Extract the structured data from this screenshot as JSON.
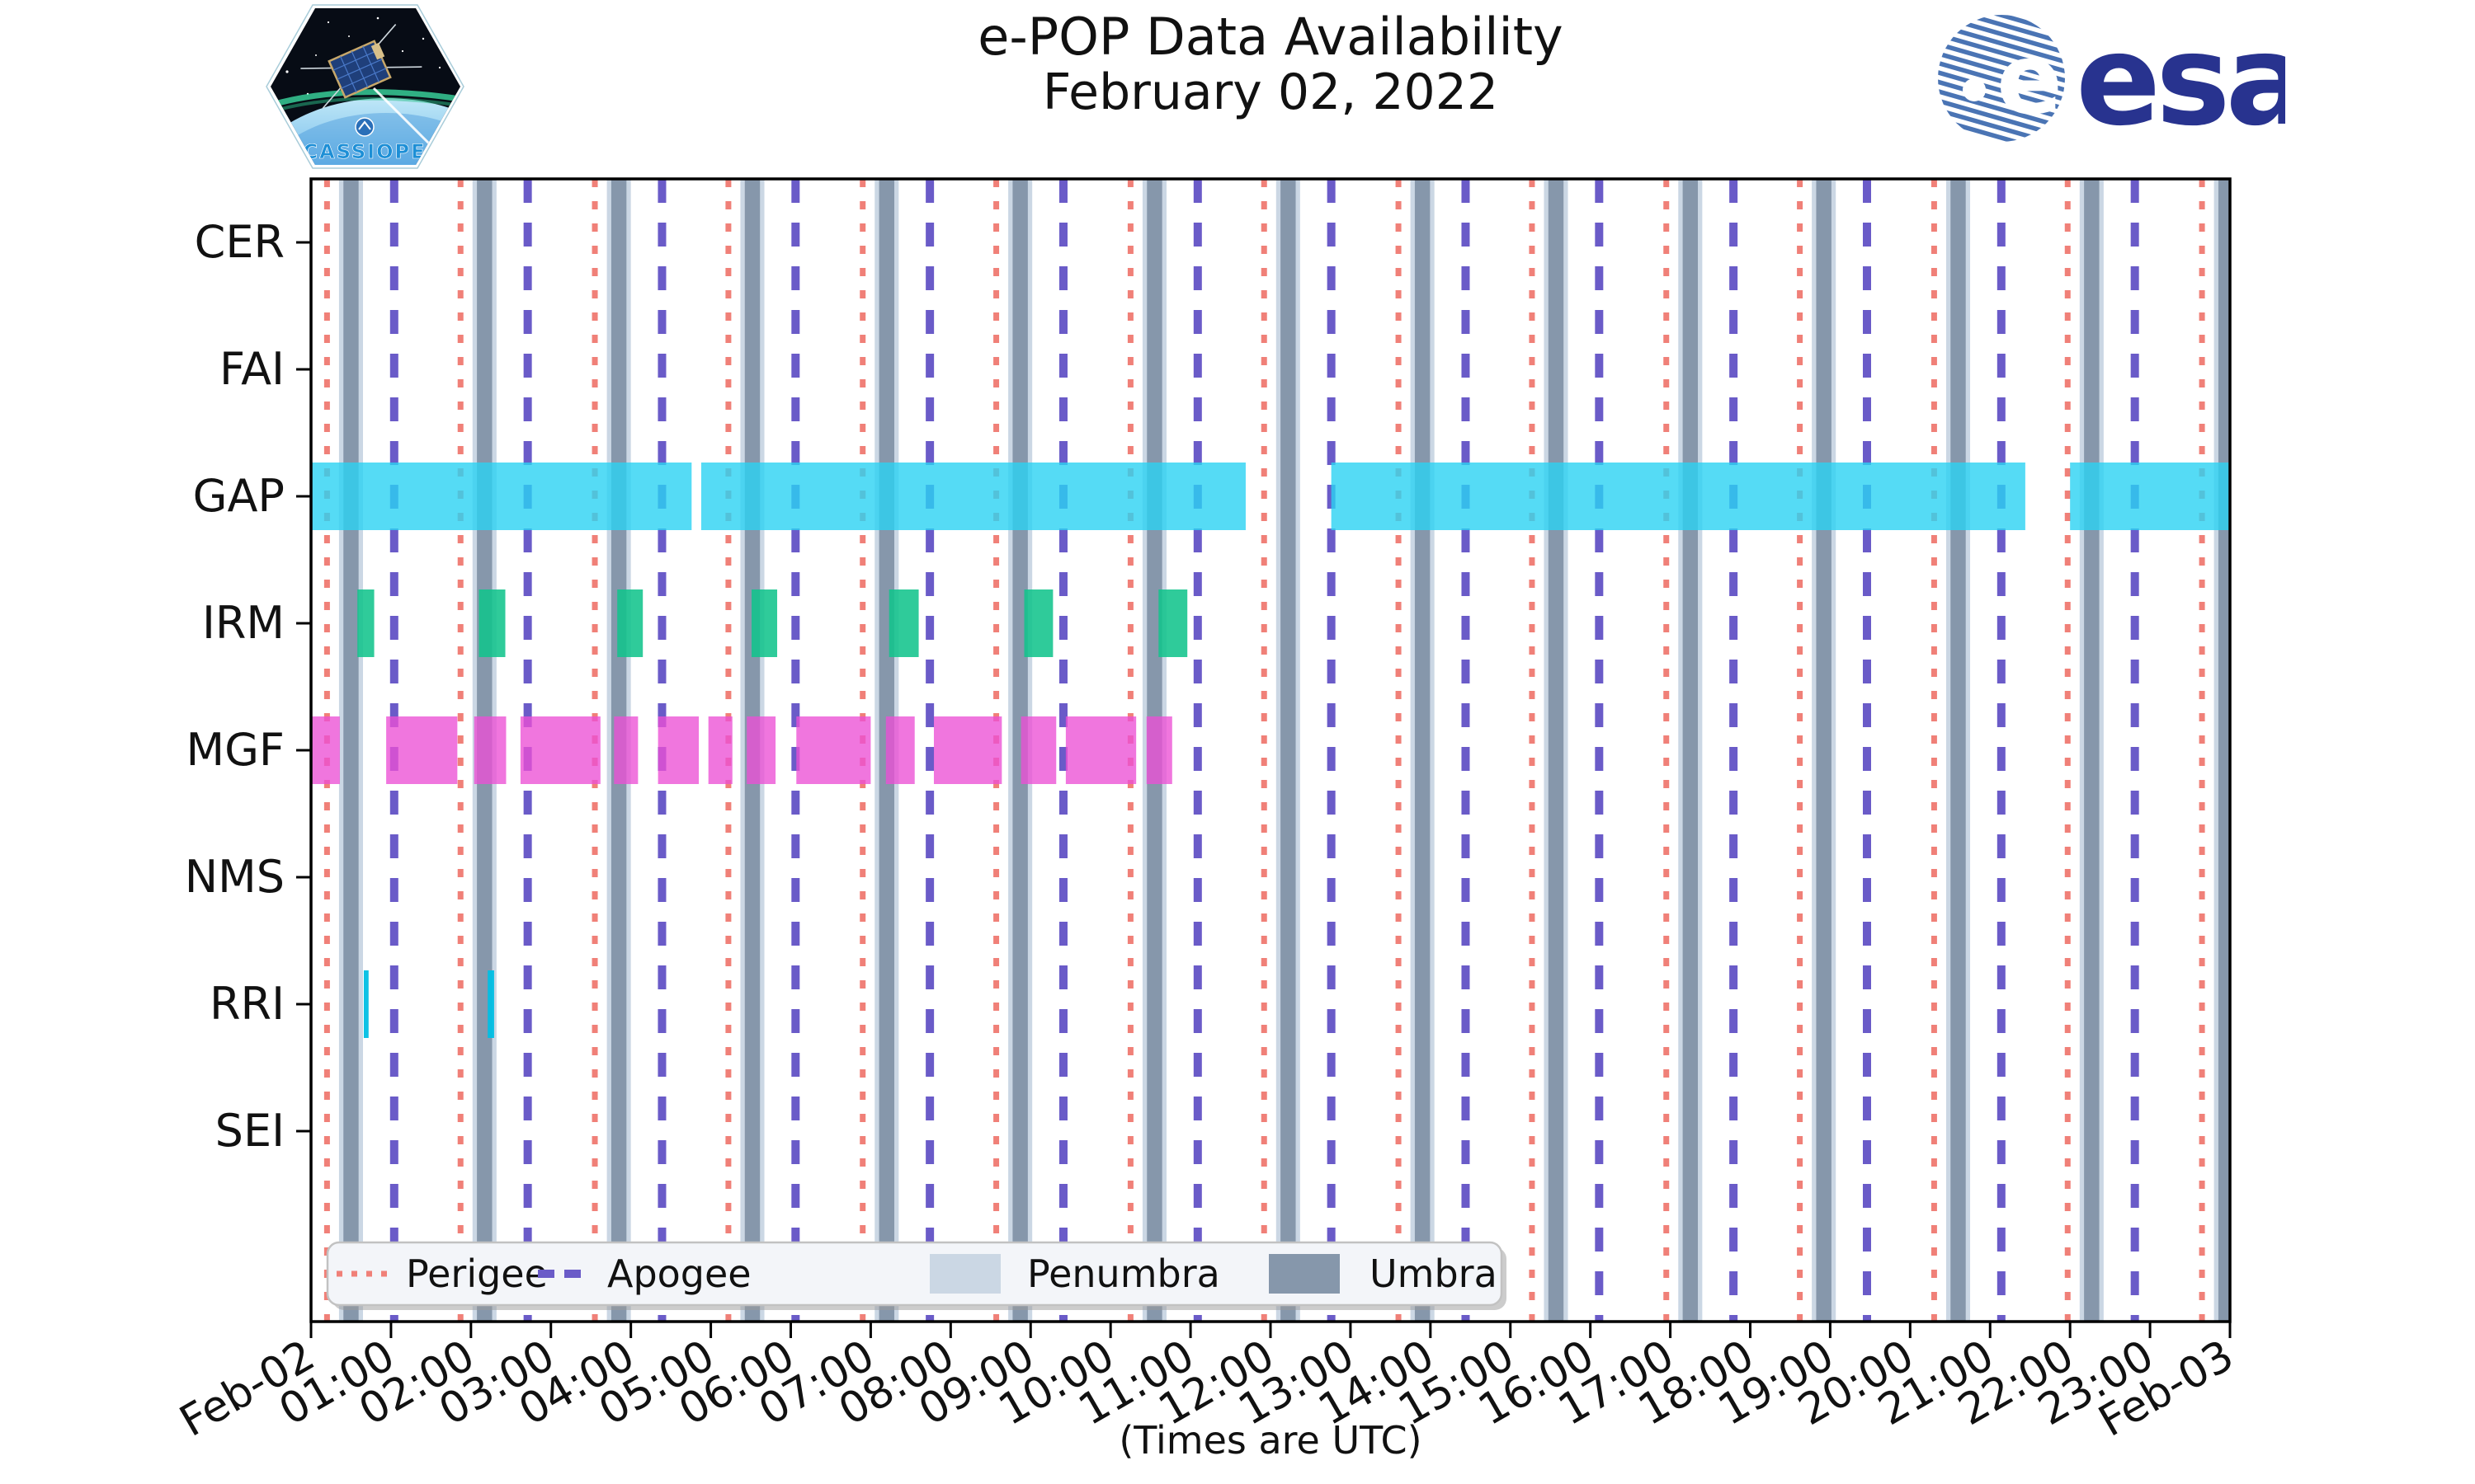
{
  "header": {
    "title_line1": "e-POP Data Availability",
    "title_line2": "February 02, 2022",
    "cassiope_label": "CASSIOPE",
    "esa_wordmark": "esa"
  },
  "colors": {
    "perigee": "#f08078",
    "apogee": "#6a5bc8",
    "umbra": "#8697ab",
    "penumbra": "#cbd7e4",
    "plot_border": "#000000",
    "tick_text": "#111111",
    "legend_background": "#f3f5f9",
    "legend_border": "#c2c2c2",
    "legend_shadow": "#9a9a9a",
    "esa_navy": "#28338f",
    "esa_stripe_blue": "#4a74b4",
    "cassiope_text_blue": "#1d8fd6"
  },
  "chart_data": {
    "type": "timeline-availability",
    "title": "e-POP Data Availability",
    "subtitle": "February 02, 2022",
    "x_axis": {
      "caption": "(Times are UTC)",
      "range_hours": [
        0,
        24
      ],
      "tick_labels": [
        "Feb-02",
        "01:00",
        "02:00",
        "03:00",
        "04:00",
        "05:00",
        "06:00",
        "07:00",
        "08:00",
        "09:00",
        "10:00",
        "11:00",
        "12:00",
        "13:00",
        "14:00",
        "15:00",
        "16:00",
        "17:00",
        "18:00",
        "19:00",
        "20:00",
        "21:00",
        "22:00",
        "23:00",
        "Feb-03"
      ]
    },
    "y_axis": {
      "instruments": [
        "CER",
        "FAI",
        "GAP",
        "IRM",
        "MGF",
        "NMS",
        "RRI",
        "SEI"
      ]
    },
    "series": [
      {
        "name": "CER",
        "color": "#2ad2f2",
        "opacity": 0.8,
        "segments_hours": []
      },
      {
        "name": "FAI",
        "color": "#2ad2f2",
        "opacity": 0.8,
        "segments_hours": []
      },
      {
        "name": "GAP",
        "color": "#2ad2f2",
        "opacity": 0.8,
        "segments_hours": [
          [
            0.0,
            4.76
          ],
          [
            4.88,
            11.69
          ],
          [
            12.76,
            21.44
          ],
          [
            22.0,
            24.0
          ]
        ]
      },
      {
        "name": "IRM",
        "color": "#12c48c",
        "opacity": 0.88,
        "segments_hours": [
          [
            0.58,
            0.79
          ],
          [
            2.1,
            2.43
          ],
          [
            3.83,
            4.15
          ],
          [
            5.51,
            5.83
          ],
          [
            7.23,
            7.6
          ],
          [
            8.92,
            9.28
          ],
          [
            10.6,
            10.96
          ]
        ]
      },
      {
        "name": "MGF",
        "color": "#ec50d5",
        "opacity": 0.78,
        "segments_hours": [
          [
            0.0,
            0.36
          ],
          [
            0.94,
            1.83
          ],
          [
            2.04,
            2.44
          ],
          [
            2.62,
            3.62
          ],
          [
            3.79,
            4.09
          ],
          [
            4.34,
            4.85
          ],
          [
            4.97,
            5.27
          ],
          [
            5.45,
            5.81
          ],
          [
            6.07,
            7.0
          ],
          [
            7.19,
            7.55
          ],
          [
            7.79,
            8.64
          ],
          [
            8.88,
            9.32
          ],
          [
            9.44,
            10.32
          ],
          [
            10.45,
            10.77
          ]
        ]
      },
      {
        "name": "NMS",
        "color": "#2ad2f2",
        "opacity": 0.8,
        "segments_hours": []
      },
      {
        "name": "RRI",
        "color": "#00bfe4",
        "opacity": 0.95,
        "segments_hours": [
          [
            0.66,
            0.72
          ],
          [
            2.21,
            2.29
          ]
        ]
      },
      {
        "name": "SEI",
        "color": "#2ad2f2",
        "opacity": 0.8,
        "segments_hours": []
      }
    ],
    "orbit_events": {
      "perigee_hours": [
        0.2,
        1.87,
        3.55,
        5.22,
        6.9,
        8.57,
        10.25,
        11.92,
        13.6,
        15.27,
        16.95,
        18.62,
        20.3,
        21.97,
        23.65
      ],
      "apogee_hours": [
        1.04,
        2.71,
        4.39,
        6.06,
        7.74,
        9.41,
        11.09,
        12.76,
        14.44,
        16.11,
        17.79,
        19.46,
        21.14,
        22.81
      ],
      "umbra_center_hours": [
        0.5,
        2.17,
        3.85,
        5.52,
        7.2,
        8.87,
        10.55,
        12.22,
        13.9,
        15.57,
        17.25,
        18.92,
        20.6,
        22.27,
        23.95
      ],
      "umbra_width_hours": 0.19,
      "penumbra_width_hours": 0.3
    },
    "legend": {
      "items": [
        {
          "label": "Perigee",
          "swatch": "dotted-line",
          "color": "#f08078"
        },
        {
          "label": "Apogee",
          "swatch": "dashed-line",
          "color": "#6a5bc8"
        },
        {
          "label": "Penumbra",
          "swatch": "patch",
          "color": "#cbd7e4"
        },
        {
          "label": "Umbra",
          "swatch": "patch",
          "color": "#8697ab"
        }
      ]
    }
  }
}
